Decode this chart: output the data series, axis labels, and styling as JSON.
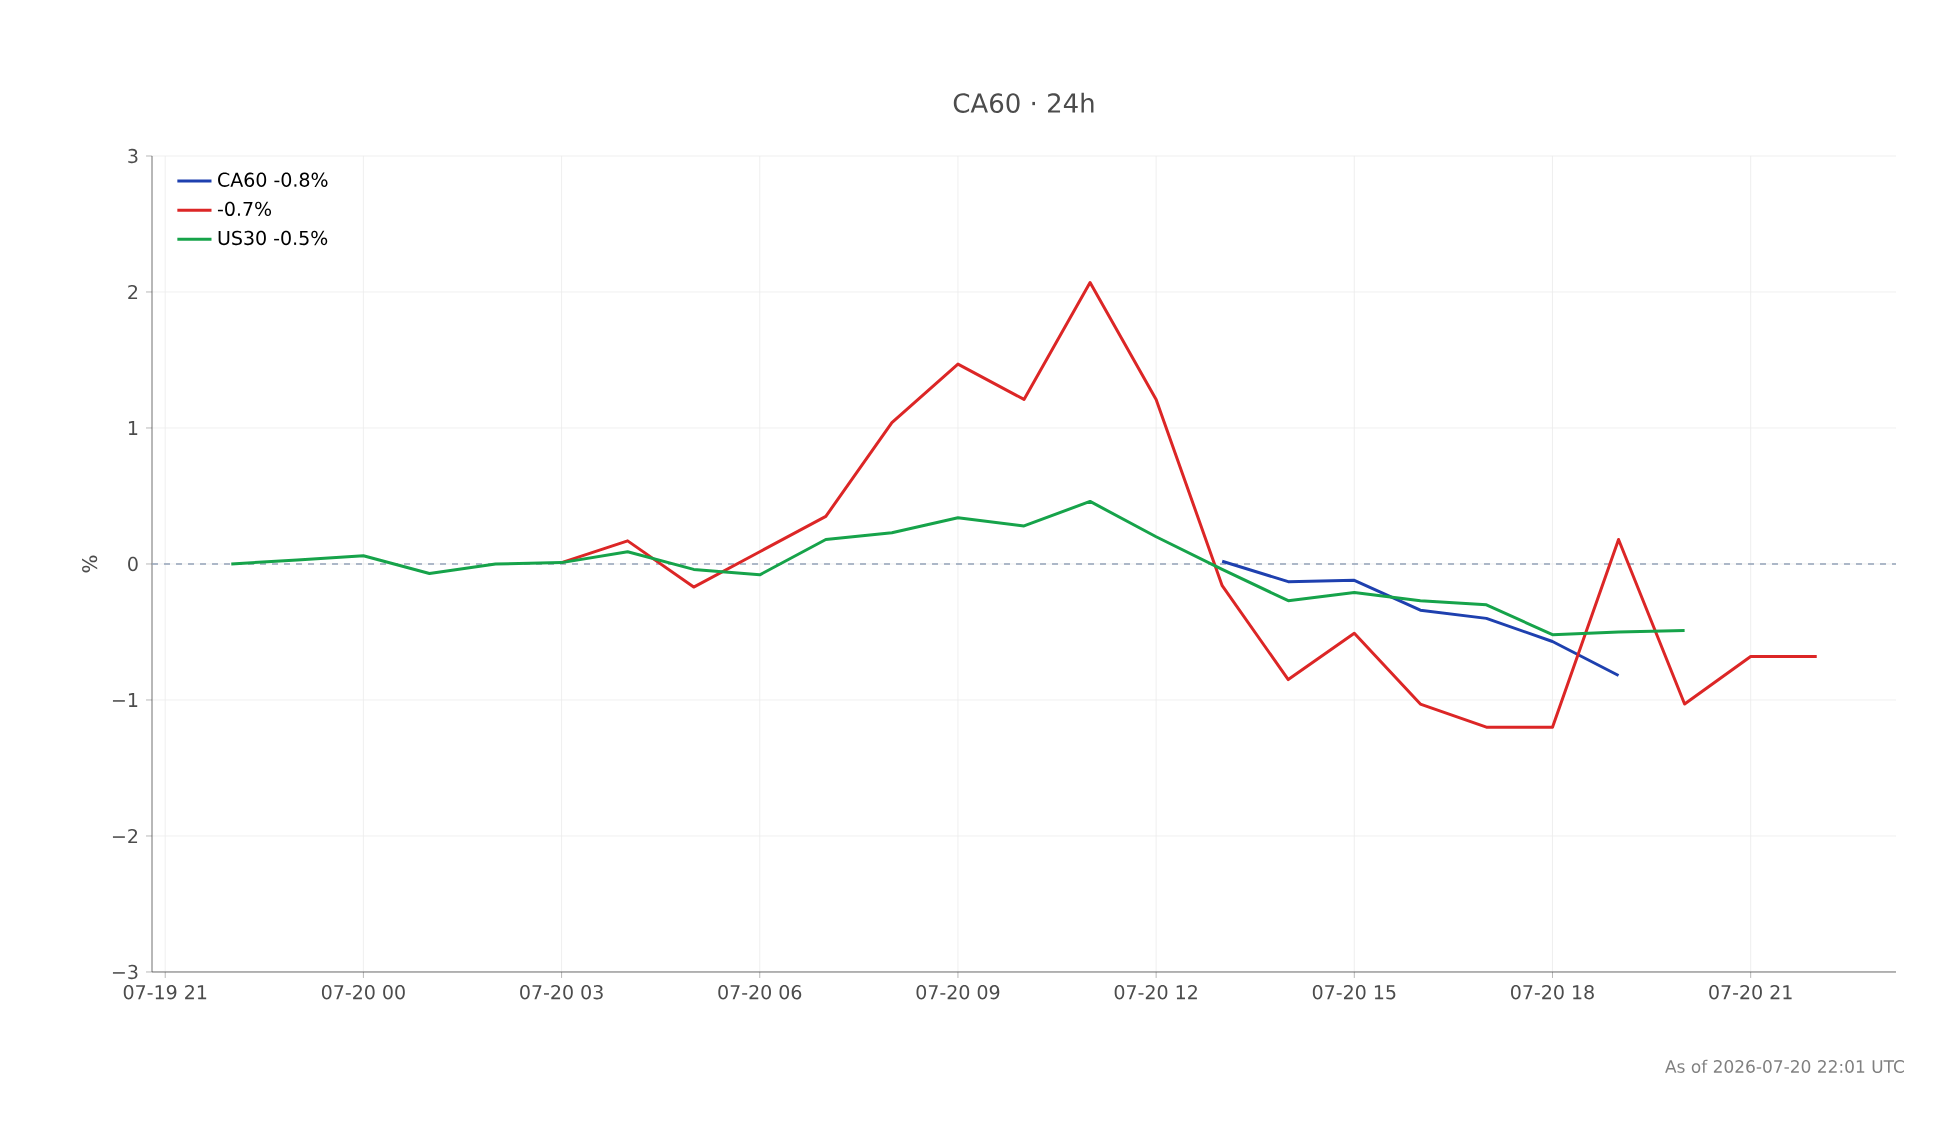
{
  "chart_data": {
    "type": "line",
    "title": "CA60 · 24h",
    "ylabel": "%",
    "xlim": [
      "2026-07-19T20:48",
      "2026-07-20T23:12"
    ],
    "xticks": [
      {
        "value": "2026-07-19T21:00",
        "label": "07-19 21"
      },
      {
        "value": "2026-07-20T00:00",
        "label": "07-20 00"
      },
      {
        "value": "2026-07-20T03:00",
        "label": "07-20 03"
      },
      {
        "value": "2026-07-20T06:00",
        "label": "07-20 06"
      },
      {
        "value": "2026-07-20T09:00",
        "label": "07-20 09"
      },
      {
        "value": "2026-07-20T12:00",
        "label": "07-20 12"
      },
      {
        "value": "2026-07-20T15:00",
        "label": "07-20 15"
      },
      {
        "value": "2026-07-20T18:00",
        "label": "07-20 18"
      },
      {
        "value": "2026-07-20T21:00",
        "label": "07-20 21"
      }
    ],
    "ylim": [
      -3,
      3
    ],
    "yticks": [
      {
        "value": -3,
        "label": "−3"
      },
      {
        "value": -2,
        "label": "−2"
      },
      {
        "value": -1,
        "label": "−1"
      },
      0,
      1,
      2,
      3
    ],
    "grid": true,
    "legend": "top left",
    "marker": "none",
    "line_style": "solid",
    "ref_lines": [
      {
        "axis": "y",
        "value": 0,
        "color": "#94a3b8",
        "line_style": "dashed"
      }
    ],
    "series": [
      {
        "name": "CA60 -0.8%",
        "color": "#1e40af",
        "x": [
          "2026-07-20T13:00",
          "2026-07-20T14:00",
          "2026-07-20T15:00",
          "2026-07-20T16:00",
          "2026-07-20T17:00",
          "2026-07-20T18:00",
          "2026-07-20T19:00"
        ],
        "values": [
          0.02,
          -0.13,
          -0.12,
          -0.34,
          -0.4,
          -0.57,
          -0.82
        ]
      },
      {
        "name": "-0.7%",
        "color": "#dc2626",
        "x": [
          "2026-07-20T03:00",
          "2026-07-20T04:00",
          "2026-07-20T05:00",
          "2026-07-20T06:00",
          "2026-07-20T07:00",
          "2026-07-20T08:00",
          "2026-07-20T09:00",
          "2026-07-20T10:00",
          "2026-07-20T11:00",
          "2026-07-20T12:00",
          "2026-07-20T13:00",
          "2026-07-20T14:00",
          "2026-07-20T15:00",
          "2026-07-20T16:00",
          "2026-07-20T17:00",
          "2026-07-20T18:00",
          "2026-07-20T19:00",
          "2026-07-20T20:00",
          "2026-07-20T21:00",
          "2026-07-20T22:00"
        ],
        "values": [
          0.01,
          0.17,
          -0.17,
          0.09,
          0.35,
          1.04,
          1.47,
          1.21,
          2.07,
          1.21,
          -0.16,
          -0.85,
          -0.51,
          -1.03,
          -1.2,
          -1.2,
          0.18,
          -1.03,
          -0.68,
          -0.68
        ]
      },
      {
        "name": "US30 -0.5%",
        "color": "#16a34a",
        "x": [
          "2026-07-19T22:00",
          "2026-07-19T23:00",
          "2026-07-20T00:00",
          "2026-07-20T01:00",
          "2026-07-20T02:00",
          "2026-07-20T03:00",
          "2026-07-20T04:00",
          "2026-07-20T05:00",
          "2026-07-20T06:00",
          "2026-07-20T07:00",
          "2026-07-20T08:00",
          "2026-07-20T09:00",
          "2026-07-20T10:00",
          "2026-07-20T11:00",
          "2026-07-20T12:00",
          "2026-07-20T13:00",
          "2026-07-20T14:00",
          "2026-07-20T15:00",
          "2026-07-20T16:00",
          "2026-07-20T17:00",
          "2026-07-20T18:00",
          "2026-07-20T19:00",
          "2026-07-20T20:00"
        ],
        "values": [
          0.0,
          0.03,
          0.06,
          -0.07,
          0.0,
          0.01,
          0.09,
          -0.04,
          -0.08,
          0.18,
          0.23,
          0.34,
          0.28,
          0.46,
          0.2,
          -0.04,
          -0.27,
          -0.21,
          -0.27,
          -0.3,
          -0.52,
          -0.5,
          -0.49
        ]
      }
    ],
    "annotations": [
      "As of 2026-07-20 22:01 UTC"
    ]
  }
}
